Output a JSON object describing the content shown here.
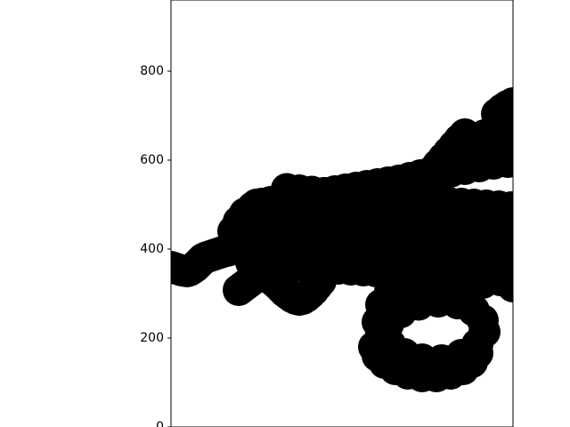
{
  "chart_data": {
    "type": "scatter",
    "title": "",
    "xlabel": "",
    "ylabel": "",
    "ylim": [
      0,
      960
    ],
    "yticks": [
      {
        "value": 0,
        "label": "0"
      },
      {
        "value": 200,
        "label": "200"
      },
      {
        "value": 400,
        "label": "400"
      },
      {
        "value": 600,
        "label": "600"
      },
      {
        "value": 800,
        "label": "800"
      }
    ],
    "x_ticks_visible": false,
    "grid": false,
    "legend": "none",
    "colors": {
      "marker": "#000000",
      "axes": "#000000",
      "background": "#ffffff"
    },
    "series": [
      {
        "points": [
          [
            0,
            360
          ],
          [
            3,
            358
          ],
          [
            6,
            356
          ],
          [
            9,
            354
          ],
          [
            12,
            352
          ],
          [
            15,
            351
          ],
          [
            18,
            350
          ],
          [
            21,
            352
          ],
          [
            24,
            356
          ],
          [
            27,
            360
          ],
          [
            30,
            366
          ],
          [
            33,
            372
          ],
          [
            36,
            378
          ],
          [
            39,
            381
          ],
          [
            42,
            383
          ],
          [
            45,
            385
          ],
          [
            48,
            387
          ],
          [
            51,
            389
          ],
          [
            54,
            391
          ],
          [
            57,
            393
          ],
          [
            60,
            395
          ],
          [
            63,
            396
          ],
          [
            66,
            398
          ],
          [
            69,
            399
          ],
          [
            72,
            400
          ],
          [
            76,
            308
          ],
          [
            80,
            314
          ],
          [
            84,
            320
          ],
          [
            88,
            326
          ],
          [
            92,
            332
          ],
          [
            96,
            336
          ],
          [
            100,
            340
          ],
          [
            104,
            342
          ],
          [
            108,
            339
          ],
          [
            112,
            334
          ],
          [
            116,
            327
          ],
          [
            120,
            320
          ],
          [
            124,
            312
          ],
          [
            128,
            304
          ],
          [
            132,
            298
          ],
          [
            136,
            292
          ],
          [
            140,
            288
          ],
          [
            144,
            286
          ],
          [
            148,
            288
          ],
          [
            152,
            293
          ],
          [
            156,
            300
          ],
          [
            160,
            308
          ],
          [
            164,
            318
          ],
          [
            168,
            328
          ],
          [
            70,
            440
          ],
          [
            76,
            462
          ],
          [
            83,
            480
          ],
          [
            92,
            494
          ],
          [
            102,
            502
          ],
          [
            112,
            506
          ],
          [
            124,
            510
          ],
          [
            136,
            514
          ],
          [
            148,
            518
          ],
          [
            160,
            522
          ],
          [
            172,
            526
          ],
          [
            184,
            530
          ],
          [
            196,
            534
          ],
          [
            208,
            538
          ],
          [
            220,
            542
          ],
          [
            232,
            546
          ],
          [
            244,
            550
          ],
          [
            256,
            554
          ],
          [
            268,
            560
          ],
          [
            280,
            566
          ],
          [
            292,
            572
          ],
          [
            300,
            576
          ],
          [
            80,
            470
          ],
          [
            94,
            468
          ],
          [
            108,
            466
          ],
          [
            122,
            464
          ],
          [
            136,
            462
          ],
          [
            150,
            460
          ],
          [
            164,
            458
          ],
          [
            178,
            456
          ],
          [
            192,
            454
          ],
          [
            206,
            452
          ],
          [
            220,
            450
          ],
          [
            234,
            448
          ],
          [
            248,
            446
          ],
          [
            262,
            444
          ],
          [
            276,
            442
          ],
          [
            290,
            440
          ],
          [
            304,
            438
          ],
          [
            318,
            436
          ],
          [
            332,
            434
          ],
          [
            346,
            432
          ],
          [
            360,
            430
          ],
          [
            374,
            428
          ],
          [
            80,
            420
          ],
          [
            94,
            418
          ],
          [
            108,
            416
          ],
          [
            122,
            414
          ],
          [
            136,
            412
          ],
          [
            150,
            410
          ],
          [
            164,
            408
          ],
          [
            178,
            406
          ],
          [
            192,
            404
          ],
          [
            206,
            402
          ],
          [
            220,
            400
          ],
          [
            234,
            398
          ],
          [
            248,
            396
          ],
          [
            262,
            394
          ],
          [
            276,
            392
          ],
          [
            290,
            390
          ],
          [
            304,
            388
          ],
          [
            318,
            386
          ],
          [
            332,
            384
          ],
          [
            346,
            382
          ],
          [
            360,
            380
          ],
          [
            374,
            378
          ],
          [
            90,
            370
          ],
          [
            104,
            368
          ],
          [
            118,
            366
          ],
          [
            132,
            364
          ],
          [
            146,
            362
          ],
          [
            160,
            360
          ],
          [
            174,
            358
          ],
          [
            188,
            356
          ],
          [
            202,
            354
          ],
          [
            216,
            352
          ],
          [
            230,
            350
          ],
          [
            244,
            348
          ],
          [
            258,
            346
          ],
          [
            272,
            344
          ],
          [
            286,
            342
          ],
          [
            300,
            340
          ],
          [
            314,
            338
          ],
          [
            328,
            336
          ],
          [
            342,
            334
          ],
          [
            356,
            332
          ],
          [
            370,
            330
          ],
          [
            384,
            328
          ],
          [
            96,
            500
          ],
          [
            110,
            498
          ],
          [
            124,
            496
          ],
          [
            138,
            494
          ],
          [
            152,
            492
          ],
          [
            166,
            490
          ],
          [
            180,
            488
          ],
          [
            194,
            486
          ],
          [
            208,
            484
          ],
          [
            222,
            482
          ],
          [
            236,
            480
          ],
          [
            250,
            478
          ],
          [
            264,
            476
          ],
          [
            278,
            474
          ],
          [
            292,
            472
          ],
          [
            306,
            470
          ],
          [
            320,
            468
          ],
          [
            334,
            466
          ],
          [
            348,
            464
          ],
          [
            362,
            462
          ],
          [
            376,
            460
          ],
          [
            384,
            458
          ],
          [
            130,
            535
          ],
          [
            144,
            532
          ],
          [
            158,
            529
          ],
          [
            172,
            526
          ],
          [
            186,
            523
          ],
          [
            200,
            520
          ],
          [
            214,
            518
          ],
          [
            228,
            516
          ],
          [
            242,
            514
          ],
          [
            256,
            512
          ],
          [
            270,
            510
          ],
          [
            284,
            508
          ],
          [
            298,
            506
          ],
          [
            312,
            504
          ],
          [
            326,
            502
          ],
          [
            340,
            500
          ],
          [
            354,
            498
          ],
          [
            368,
            496
          ],
          [
            382,
            494
          ],
          [
            238,
            395
          ],
          [
            252,
            389
          ],
          [
            266,
            383
          ],
          [
            280,
            377
          ],
          [
            294,
            371
          ],
          [
            308,
            365
          ],
          [
            322,
            359
          ],
          [
            336,
            353
          ],
          [
            350,
            347
          ],
          [
            364,
            341
          ],
          [
            378,
            335
          ],
          [
            384,
            332
          ],
          [
            270,
            520
          ],
          [
            276,
            534
          ],
          [
            282,
            548
          ],
          [
            288,
            562
          ],
          [
            294,
            576
          ],
          [
            300,
            590
          ],
          [
            306,
            604
          ],
          [
            312,
            618
          ],
          [
            318,
            632
          ],
          [
            324,
            646
          ],
          [
            330,
            658
          ],
          [
            300,
            560
          ],
          [
            314,
            574
          ],
          [
            328,
            588
          ],
          [
            342,
            602
          ],
          [
            356,
            616
          ],
          [
            370,
            630
          ],
          [
            382,
            640
          ],
          [
            310,
            600
          ],
          [
            324,
            616
          ],
          [
            338,
            632
          ],
          [
            352,
            648
          ],
          [
            366,
            664
          ],
          [
            374,
            676
          ],
          [
            340,
            640
          ],
          [
            352,
            656
          ],
          [
            364,
            672
          ],
          [
            376,
            690
          ],
          [
            384,
            700
          ],
          [
            366,
            704
          ],
          [
            372,
            714
          ],
          [
            378,
            722
          ],
          [
            384,
            728
          ],
          [
            330,
            580
          ],
          [
            346,
            586
          ],
          [
            362,
            592
          ],
          [
            378,
            596
          ],
          [
            384,
            598
          ],
          [
            236,
            275
          ],
          [
            246,
            305
          ],
          [
            262,
            330
          ],
          [
            282,
            348
          ],
          [
            304,
            358
          ],
          [
            326,
            360
          ],
          [
            348,
            352
          ],
          [
            368,
            336
          ],
          [
            384,
            316
          ],
          [
            244,
            232
          ],
          [
            258,
            258
          ],
          [
            278,
            275
          ],
          [
            300,
            282
          ],
          [
            322,
            278
          ],
          [
            340,
            262
          ],
          [
            350,
            240
          ],
          [
            352,
            214
          ],
          [
            344,
            186
          ],
          [
            326,
            162
          ],
          [
            304,
            150
          ],
          [
            282,
            152
          ],
          [
            262,
            164
          ],
          [
            246,
            186
          ],
          [
            236,
            212
          ],
          [
            232,
            236
          ],
          [
            228,
            180
          ],
          [
            232,
            160
          ],
          [
            240,
            144
          ],
          [
            252,
            130
          ],
          [
            266,
            120
          ],
          [
            282,
            114
          ],
          [
            298,
            114
          ],
          [
            314,
            120
          ],
          [
            328,
            130
          ],
          [
            338,
            146
          ],
          [
            344,
            166
          ],
          [
            220,
            470
          ],
          [
            240,
            472
          ],
          [
            260,
            468
          ],
          [
            280,
            462
          ],
          [
            300,
            456
          ],
          [
            320,
            450
          ],
          [
            340,
            446
          ],
          [
            360,
            444
          ],
          [
            384,
            442
          ],
          [
            250,
            300
          ],
          [
            270,
            304
          ],
          [
            290,
            306
          ],
          [
            310,
            310
          ],
          [
            330,
            316
          ],
          [
            350,
            324
          ],
          [
            370,
            330
          ],
          [
            384,
            334
          ]
        ]
      }
    ]
  }
}
